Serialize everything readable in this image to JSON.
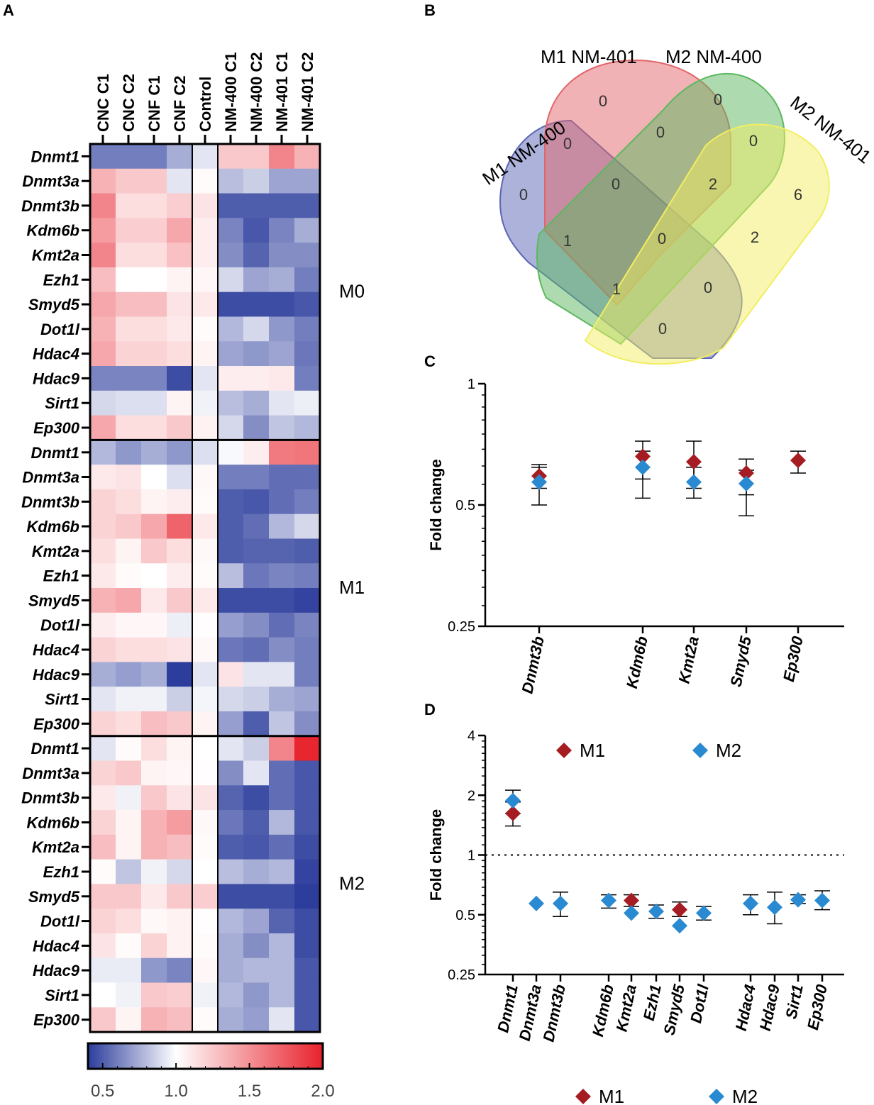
{
  "panel_labels": [
    "A",
    "B",
    "C",
    "D"
  ],
  "chart_data": [
    {
      "type": "heatmap",
      "panel": "A",
      "columns": [
        "CNC C1",
        "CNC C2",
        "CNF C1",
        "CNF C2",
        "Control",
        "NM-400 C1",
        "NM-400 C2",
        "NM-401 C1",
        "NM-401 C2"
      ],
      "genes": [
        "Dnmt1",
        "Dnmt3a",
        "Dnmt3b",
        "Kdm6b",
        "Kmt2a",
        "Ezh1",
        "Smyd5",
        "Dot1l",
        "Hdac4",
        "Hdac9",
        "Sirt1",
        "Ep300"
      ],
      "colorbar": {
        "min": 0.4,
        "max": 2.0,
        "ticks": [
          0.5,
          1.0,
          1.5,
          2.0
        ],
        "tick_labels": [
          "0.5",
          "1.0",
          "1.5",
          "2.0"
        ],
        "low_color": "#2c3d9c",
        "mid_color": "#ffffff",
        "high_color": "#e8222c"
      },
      "groups": [
        {
          "name": "M0",
          "values": [
            [
              0.6,
              0.6,
              0.6,
              0.75,
              0.92,
              1.25,
              1.25,
              1.55,
              1.35
            ],
            [
              1.35,
              1.25,
              1.25,
              0.92,
              1.02,
              0.8,
              0.85,
              0.72,
              0.72
            ],
            [
              1.55,
              1.15,
              1.15,
              1.22,
              1.12,
              0.5,
              0.5,
              0.5,
              0.5
            ],
            [
              1.45,
              1.22,
              1.22,
              1.4,
              1.08,
              0.62,
              0.48,
              0.62,
              0.75
            ],
            [
              1.55,
              1.15,
              1.15,
              1.28,
              1.08,
              0.65,
              0.52,
              0.65,
              0.65
            ],
            [
              1.3,
              1.0,
              1.0,
              1.05,
              1.04,
              0.88,
              0.72,
              0.75,
              0.6
            ],
            [
              1.4,
              1.3,
              1.3,
              1.12,
              1.1,
              0.45,
              0.45,
              0.45,
              0.48
            ],
            [
              1.35,
              1.15,
              1.15,
              1.1,
              1.02,
              0.78,
              0.88,
              0.68,
              0.6
            ],
            [
              1.4,
              1.2,
              1.2,
              1.15,
              1.05,
              0.72,
              0.68,
              0.72,
              0.58
            ],
            [
              0.62,
              0.62,
              0.62,
              0.45,
              0.92,
              1.08,
              1.08,
              1.1,
              0.6
            ],
            [
              0.88,
              0.9,
              0.9,
              1.05,
              0.96,
              0.8,
              0.75,
              0.92,
              0.95
            ],
            [
              1.4,
              1.15,
              1.15,
              1.25,
              1.06,
              0.88,
              0.65,
              0.82,
              0.78
            ]
          ]
        },
        {
          "name": "M1",
          "values": [
            [
              0.78,
              0.68,
              0.75,
              0.68,
              0.9,
              0.98,
              1.08,
              1.6,
              1.62
            ],
            [
              1.1,
              1.12,
              1.0,
              0.9,
              1.03,
              0.6,
              0.6,
              0.55,
              0.55
            ],
            [
              1.2,
              1.15,
              1.05,
              1.08,
              1.02,
              0.5,
              0.48,
              0.55,
              0.6
            ],
            [
              1.2,
              1.25,
              1.4,
              1.7,
              1.1,
              0.5,
              0.55,
              0.78,
              0.88
            ],
            [
              1.15,
              1.05,
              1.25,
              1.15,
              1.03,
              0.5,
              0.52,
              0.52,
              0.5
            ],
            [
              1.1,
              1.02,
              1.0,
              1.08,
              1.02,
              0.8,
              0.58,
              0.62,
              0.6
            ],
            [
              1.35,
              1.4,
              1.1,
              1.25,
              1.1,
              0.45,
              0.45,
              0.45,
              0.42
            ],
            [
              1.08,
              1.04,
              1.04,
              0.95,
              1.01,
              0.7,
              0.65,
              0.55,
              0.62
            ],
            [
              1.2,
              1.15,
              1.15,
              1.12,
              1.03,
              0.58,
              0.55,
              0.65,
              0.6
            ],
            [
              0.75,
              0.7,
              0.75,
              0.4,
              0.92,
              1.12,
              0.92,
              0.92,
              0.6
            ],
            [
              0.92,
              0.96,
              0.96,
              0.85,
              0.97,
              0.88,
              0.85,
              0.75,
              0.72
            ],
            [
              1.2,
              1.15,
              1.3,
              1.25,
              1.05,
              0.7,
              0.5,
              0.82,
              0.65
            ]
          ]
        },
        {
          "name": "M2",
          "values": [
            [
              0.92,
              1.02,
              1.15,
              1.05,
              1.0,
              0.92,
              0.85,
              1.55,
              1.98
            ],
            [
              1.2,
              1.25,
              1.05,
              1.04,
              1.01,
              0.65,
              0.92,
              0.55,
              0.48
            ],
            [
              1.1,
              0.96,
              1.25,
              1.12,
              1.12,
              0.52,
              0.45,
              0.55,
              0.48
            ],
            [
              1.2,
              1.05,
              1.35,
              1.45,
              1.03,
              0.58,
              0.5,
              0.78,
              0.48
            ],
            [
              1.3,
              1.05,
              1.35,
              1.3,
              1.02,
              0.5,
              0.48,
              0.55,
              0.45
            ],
            [
              1.02,
              0.82,
              0.96,
              0.88,
              1.0,
              0.8,
              0.75,
              0.78,
              0.42
            ],
            [
              1.25,
              1.25,
              1.1,
              1.25,
              1.22,
              0.45,
              0.45,
              0.45,
              0.4
            ],
            [
              1.2,
              1.15,
              1.03,
              1.06,
              1.01,
              0.78,
              0.72,
              0.52,
              0.45
            ],
            [
              1.12,
              1.02,
              1.2,
              1.06,
              1.02,
              0.75,
              0.65,
              0.78,
              0.45
            ],
            [
              0.94,
              0.94,
              0.68,
              0.62,
              1.04,
              0.75,
              0.78,
              0.78,
              0.48
            ],
            [
              1.0,
              0.96,
              1.25,
              1.22,
              0.96,
              0.78,
              0.68,
              0.78,
              0.48
            ],
            [
              1.25,
              1.05,
              1.35,
              1.3,
              1.02,
              0.75,
              0.7,
              0.92,
              0.48
            ]
          ]
        }
      ]
    },
    {
      "type": "venn",
      "panel": "B",
      "sets": [
        "M1 NM-400",
        "M1 NM-401",
        "M2 NM-400",
        "M2 NM-401"
      ],
      "set_colors": [
        "#5b66b5",
        "#e26569",
        "#5cb85f",
        "#f2ee62"
      ],
      "region_counts": [
        0,
        0,
        0,
        0,
        0,
        0,
        0,
        6,
        0,
        2,
        1,
        2,
        0,
        1,
        0
      ]
    },
    {
      "type": "scatter",
      "panel": "C",
      "ylabel": "Fold change",
      "y_scale": "log2",
      "ylim": [
        0.25,
        1
      ],
      "y_ticks": [
        "0.25",
        "0.5",
        "1"
      ],
      "categories": [
        "Dnmt3b",
        "Kdm6b",
        "Kmt2a",
        "Smyd5",
        "Ep300"
      ],
      "series": [
        {
          "name": "M1",
          "color": "#a51d23",
          "values": [
            0.59,
            0.66,
            0.64,
            0.6,
            0.645
          ],
          "err_low": [
            0.55,
            0.58,
            0.55,
            0.53,
            0.6
          ],
          "err_high": [
            0.62,
            0.72,
            0.72,
            0.65,
            0.68
          ]
        },
        {
          "name": "M2",
          "color": "#2a8ad1",
          "values": [
            0.57,
            0.62,
            0.57,
            0.565,
            null
          ],
          "err_low": [
            0.5,
            0.52,
            0.52,
            0.47,
            null
          ],
          "err_high": [
            0.63,
            0.68,
            0.62,
            0.61,
            null
          ]
        }
      ]
    },
    {
      "type": "scatter",
      "panel": "D",
      "ylabel": "Fold change",
      "y_scale": "log2",
      "ylim": [
        0.25,
        4
      ],
      "y_ticks": [
        "0.25",
        "0.5",
        "1",
        "2",
        "4"
      ],
      "reference_line": 1,
      "categories": [
        "Dnmt1",
        "Dnmt3a",
        "Dnmt3b",
        "Kdm6b",
        "Kmt2a",
        "Ezh1",
        "Smyd5",
        "Dot1l",
        "Hdac4",
        "Hdac9",
        "Sirt1",
        "Ep300"
      ],
      "series": [
        {
          "name": "M1",
          "color": "#a51d23",
          "values": [
            1.62,
            null,
            null,
            null,
            0.59,
            null,
            0.53,
            null,
            null,
            null,
            null,
            null
          ],
          "err_low": [
            1.4,
            null,
            null,
            null,
            0.55,
            null,
            0.49,
            null,
            null,
            null,
            null,
            null
          ],
          "err_high": [
            1.85,
            null,
            null,
            null,
            0.63,
            null,
            0.58,
            null,
            null,
            null,
            null,
            null
          ]
        },
        {
          "name": "M2",
          "color": "#2a8ad1",
          "values": [
            1.88,
            0.57,
            0.57,
            0.59,
            0.51,
            0.52,
            0.44,
            0.51,
            0.57,
            0.545,
            0.595,
            0.59
          ],
          "err_low": [
            1.62,
            null,
            0.49,
            0.54,
            null,
            0.48,
            null,
            0.47,
            0.5,
            0.45,
            0.57,
            0.53
          ],
          "err_high": [
            2.12,
            null,
            0.65,
            0.63,
            null,
            0.56,
            null,
            0.55,
            0.63,
            0.65,
            0.63,
            0.66
          ]
        }
      ],
      "legends": [
        {
          "items": [
            "M1",
            "M2"
          ]
        },
        {
          "items": [
            "M1",
            "M2"
          ]
        }
      ]
    }
  ]
}
